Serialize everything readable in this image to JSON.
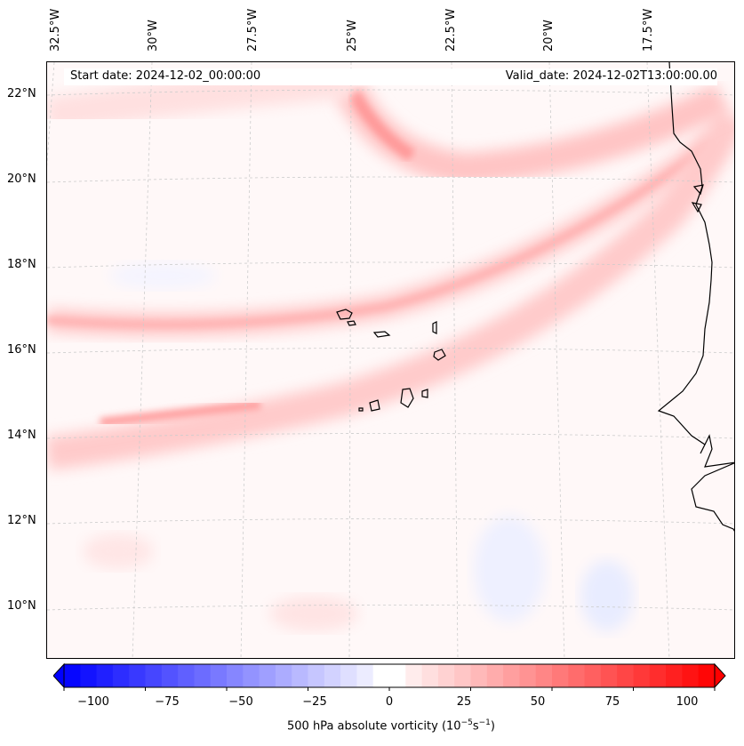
{
  "map": {
    "start_date": "Start date: 2024-12-02_00:00:00",
    "valid_date": "Valid_date: 2024-12-02T13:00:00.00",
    "lon_labels": [
      "32.5°W",
      "30°W",
      "27.5°W",
      "25°W",
      "22.5°W",
      "20°W",
      "17.5°W"
    ],
    "lat_labels": [
      "22°N",
      "20°N",
      "18°N",
      "16°N",
      "14°N",
      "12°N",
      "10°N"
    ]
  },
  "colorbar": {
    "ticks": [
      "−100",
      "−75",
      "−50",
      "−25",
      "0",
      "25",
      "50",
      "75",
      "100"
    ],
    "label_main": "500 hPa absolute vorticity (10",
    "label_exp1": "−5",
    "label_mid": "s",
    "label_exp2": "−1",
    "label_end": ")",
    "min": -100,
    "max": 100,
    "negative_color": "#0000ff",
    "positive_color": "#ff0000"
  }
}
